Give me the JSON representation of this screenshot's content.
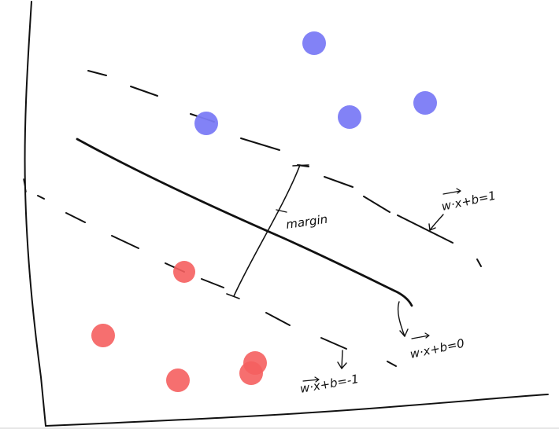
{
  "labels": {
    "margin": "margin",
    "positive_margin": "w·x+b=1",
    "decision_boundary": "w·x+b=0",
    "negative_margin": "w·x+b=-1"
  },
  "colors": {
    "positive_class": "#7b7bf5",
    "negative_class": "#f55f5f",
    "ink": "#111111"
  }
}
